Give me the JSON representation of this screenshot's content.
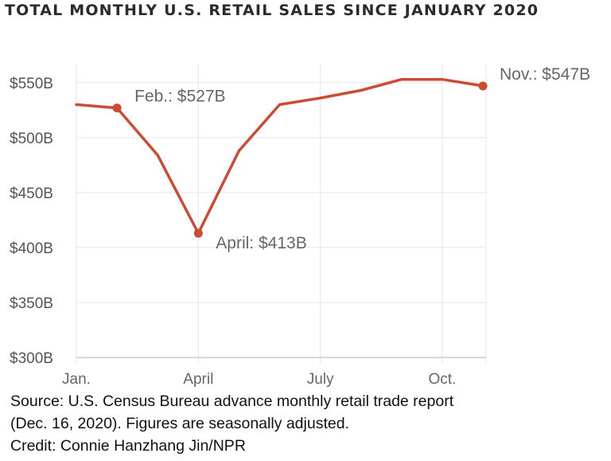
{
  "title": "TOTAL MONTHLY U.S. RETAIL SALES SINCE JANUARY 2020",
  "colors": {
    "line": "#cc4b33",
    "grid": "#e6e6e6",
    "axis": "#cccccc"
  },
  "chart_data": {
    "type": "line",
    "title": "TOTAL MONTHLY U.S. RETAIL SALES SINCE JANUARY 2020",
    "xlabel": "",
    "ylabel": "",
    "x": [
      "2020-01",
      "2020-02",
      "2020-03",
      "2020-04",
      "2020-05",
      "2020-06",
      "2020-07",
      "2020-08",
      "2020-09",
      "2020-10",
      "2020-11"
    ],
    "series": [
      {
        "values": [
          530,
          527,
          484,
          413,
          488,
          530,
          536,
          543,
          553,
          553,
          547
        ]
      }
    ],
    "ylim": [
      300,
      560
    ],
    "yticks": [
      {
        "value": 300,
        "label": "$300B"
      },
      {
        "value": 350,
        "label": "$350B"
      },
      {
        "value": 400,
        "label": "$400B"
      },
      {
        "value": 450,
        "label": "$450B"
      },
      {
        "value": 500,
        "label": "$500B"
      },
      {
        "value": 550,
        "label": "$550B"
      }
    ],
    "xticks": [
      {
        "x": "2020-01",
        "label": "Jan."
      },
      {
        "x": "2020-04",
        "label": "April"
      },
      {
        "x": "2020-07",
        "label": "July"
      },
      {
        "x": "2020-10",
        "label": "Oct."
      }
    ],
    "grid": true,
    "legend": "none",
    "annotations": [
      {
        "x": "2020-02",
        "value": 527,
        "label": "Feb.: $527B"
      },
      {
        "x": "2020-04",
        "value": 413,
        "label": "April: $413B"
      },
      {
        "x": "2020-11",
        "value": 547,
        "label": "Nov.: $547B"
      }
    ]
  },
  "footer": {
    "source_line1": "Source: U.S. Census Bureau advance monthly retail trade report",
    "source_line2": "(Dec. 16, 2020). Figures are seasonally adjusted.",
    "credit": "Credit: Connie Hanzhang Jin/NPR"
  }
}
